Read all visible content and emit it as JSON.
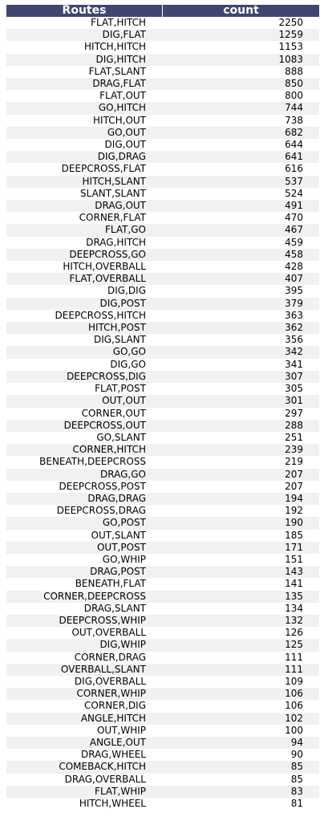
{
  "chart_data": {
    "type": "table",
    "columns": [
      "Routes",
      "count"
    ],
    "rows": [
      [
        "FLAT,HITCH",
        "2250"
      ],
      [
        "DIG,FLAT",
        "1259"
      ],
      [
        "HITCH,HITCH",
        "1153"
      ],
      [
        "DIG,HITCH",
        "1083"
      ],
      [
        "FLAT,SLANT",
        "888"
      ],
      [
        "DRAG,FLAT",
        "850"
      ],
      [
        "FLAT,OUT",
        "800"
      ],
      [
        "GO,HITCH",
        "744"
      ],
      [
        "HITCH,OUT",
        "738"
      ],
      [
        "GO,OUT",
        "682"
      ],
      [
        "DIG,OUT",
        "644"
      ],
      [
        "DIG,DRAG",
        "641"
      ],
      [
        "DEEPCROSS,FLAT",
        "616"
      ],
      [
        "HITCH,SLANT",
        "537"
      ],
      [
        "SLANT,SLANT",
        "524"
      ],
      [
        "DRAG,OUT",
        "491"
      ],
      [
        "CORNER,FLAT",
        "470"
      ],
      [
        "FLAT,GO",
        "467"
      ],
      [
        "DRAG,HITCH",
        "459"
      ],
      [
        "DEEPCROSS,GO",
        "458"
      ],
      [
        "HITCH,OVERBALL",
        "428"
      ],
      [
        "FLAT,OVERBALL",
        "407"
      ],
      [
        "DIG,DIG",
        "395"
      ],
      [
        "DIG,POST",
        "379"
      ],
      [
        "DEEPCROSS,HITCH",
        "363"
      ],
      [
        "HITCH,POST",
        "362"
      ],
      [
        "DIG,SLANT",
        "356"
      ],
      [
        "GO,GO",
        "342"
      ],
      [
        "DIG,GO",
        "341"
      ],
      [
        "DEEPCROSS,DIG",
        "307"
      ],
      [
        "FLAT,POST",
        "305"
      ],
      [
        "OUT,OUT",
        "301"
      ],
      [
        "CORNER,OUT",
        "297"
      ],
      [
        "DEEPCROSS,OUT",
        "288"
      ],
      [
        "GO,SLANT",
        "251"
      ],
      [
        "CORNER,HITCH",
        "239"
      ],
      [
        "BENEATH,DEEPCROSS",
        "219"
      ],
      [
        "DRAG,GO",
        "207"
      ],
      [
        "DEEPCROSS,POST",
        "207"
      ],
      [
        "DRAG,DRAG",
        "194"
      ],
      [
        "DEEPCROSS,DRAG",
        "192"
      ],
      [
        "GO,POST",
        "190"
      ],
      [
        "OUT,SLANT",
        "185"
      ],
      [
        "OUT,POST",
        "171"
      ],
      [
        "GO,WHIP",
        "151"
      ],
      [
        "DRAG,POST",
        "143"
      ],
      [
        "BENEATH,FLAT",
        "141"
      ],
      [
        "CORNER,DEEPCROSS",
        "135"
      ],
      [
        "DRAG,SLANT",
        "134"
      ],
      [
        "DEEPCROSS,WHIP",
        "132"
      ],
      [
        "OUT,OVERBALL",
        "126"
      ],
      [
        "DIG,WHIP",
        "125"
      ],
      [
        "CORNER,DRAG",
        "111"
      ],
      [
        "OVERBALL,SLANT",
        "111"
      ],
      [
        "DIG,OVERBALL",
        "109"
      ],
      [
        "CORNER,WHIP",
        "106"
      ],
      [
        "CORNER,DIG",
        "106"
      ],
      [
        "ANGLE,HITCH",
        "102"
      ],
      [
        "OUT,WHIP",
        "100"
      ],
      [
        "ANGLE,OUT",
        "94"
      ],
      [
        "DRAG,WHEEL",
        "90"
      ],
      [
        "COMEBACK,HITCH",
        "85"
      ],
      [
        "DRAG,OVERBALL",
        "85"
      ],
      [
        "FLAT,WHIP",
        "83"
      ],
      [
        "HITCH,WHEEL",
        "81"
      ]
    ],
    "header_color": "#40466e",
    "stripe_color": "#f1f1f2"
  }
}
